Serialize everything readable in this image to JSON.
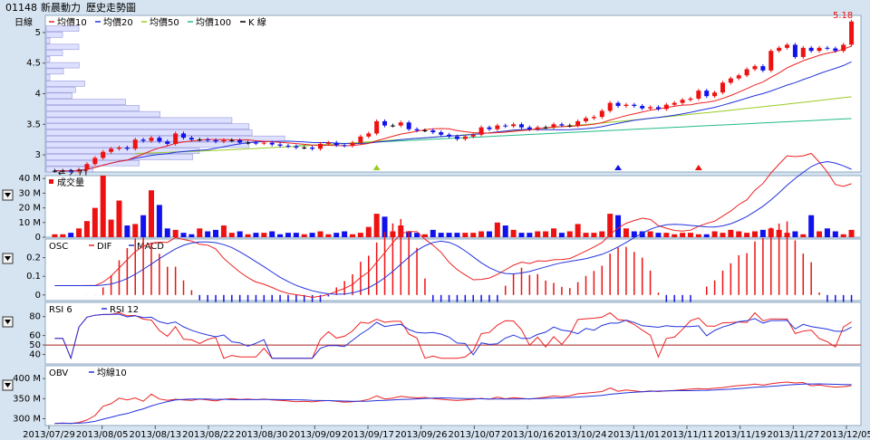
{
  "header": {
    "code": "01148",
    "name": "新晨動力",
    "subtitle": "歷史走勢圖"
  },
  "colors": {
    "up": "#ee1111",
    "down": "#1111ee",
    "ma10": "#ee2222",
    "ma20": "#2233dd",
    "ma50": "#99cc22",
    "ma100": "#22bb88",
    "panel_bg": "#ffffff",
    "bg": "#d6e3f0"
  },
  "dates": [
    "2013/07/29",
    "2013/08/05",
    "2013/08/13",
    "2013/08/22",
    "2013/08/30",
    "2013/09/09",
    "2013/09/17",
    "2013/09/26",
    "2013/10/07",
    "2013/10/16",
    "2013/10/24",
    "2013/11/01",
    "2013/11/11",
    "2013/11/19",
    "2013/11/27",
    "2013/12/05"
  ],
  "chart_data": [
    {
      "type": "candlestick",
      "panel": "price",
      "period_label": "日線",
      "legend": [
        {
          "name": "均價10",
          "color": "#ee2222"
        },
        {
          "name": "均價20",
          "color": "#2233dd"
        },
        {
          "name": "均價50",
          "color": "#99cc22"
        },
        {
          "name": "均價100",
          "color": "#22bb88"
        },
        {
          "name": "K 線",
          "color": "#000000"
        }
      ],
      "y_ticks": [
        "3",
        "3.5",
        "4",
        "4.5",
        "5"
      ],
      "ylim": [
        2.72,
        5.28
      ],
      "annotations": {
        "high": "5.18",
        "low": "2.71"
      },
      "closes": [
        2.74,
        2.74,
        2.73,
        2.76,
        2.85,
        2.95,
        3.05,
        3.1,
        3.12,
        3.1,
        3.25,
        3.23,
        3.28,
        3.22,
        3.18,
        3.35,
        3.28,
        3.25,
        3.25,
        3.24,
        3.22,
        3.24,
        3.24,
        3.2,
        3.2,
        3.19,
        3.2,
        3.17,
        3.15,
        3.14,
        3.12,
        3.12,
        3.1,
        3.18,
        3.2,
        3.16,
        3.15,
        3.2,
        3.3,
        3.35,
        3.55,
        3.48,
        3.48,
        3.53,
        3.42,
        3.4,
        3.4,
        3.37,
        3.33,
        3.3,
        3.26,
        3.3,
        3.33,
        3.45,
        3.42,
        3.48,
        3.47,
        3.5,
        3.45,
        3.42,
        3.45,
        3.45,
        3.5,
        3.48,
        3.48,
        3.55,
        3.6,
        3.62,
        3.72,
        3.85,
        3.8,
        3.82,
        3.8,
        3.76,
        3.78,
        3.75,
        3.82,
        3.85,
        3.9,
        3.92,
        4.05,
        3.96,
        4.02,
        4.18,
        4.25,
        4.3,
        4.4,
        4.45,
        4.38,
        4.7,
        4.75,
        4.8,
        4.6,
        4.75,
        4.7,
        4.75,
        4.74,
        4.7,
        4.8,
        5.18
      ]
    },
    {
      "type": "bar",
      "panel": "volume",
      "legend": [
        {
          "name": "成交量",
          "color": "#ee1111"
        }
      ],
      "y_ticks": [
        "0",
        "10 M",
        "20 M",
        "30 M",
        "40 M"
      ],
      "ylim": [
        0,
        42
      ],
      "values": [
        2,
        2,
        3,
        6,
        11,
        20,
        42,
        12,
        25,
        8,
        9,
        15,
        32,
        22,
        6,
        5,
        3,
        2,
        6,
        4,
        5,
        8,
        3,
        4,
        2,
        3,
        3,
        4,
        2,
        3,
        3,
        2,
        3,
        4,
        2,
        3,
        4,
        2,
        3,
        7,
        16,
        14,
        4,
        8,
        4,
        3,
        2,
        5,
        3,
        3,
        3,
        3,
        3,
        4,
        4,
        10,
        8,
        5,
        3,
        3,
        4,
        4,
        6,
        3,
        4,
        9,
        3,
        3,
        4,
        16,
        15,
        6,
        4,
        4,
        4,
        3,
        3,
        2,
        3,
        3,
        2,
        2,
        4,
        3,
        5,
        4,
        3,
        4,
        5,
        6,
        5,
        3,
        4,
        2,
        15,
        4,
        6,
        4,
        2,
        5
      ]
    },
    {
      "type": "line",
      "panel": "macd",
      "legend": [
        {
          "name": "OSC",
          "color": "#ee1111"
        },
        {
          "name": "DIF",
          "color": "#ee2222"
        },
        {
          "name": "MACD",
          "color": "#2233dd"
        }
      ],
      "y_ticks": [
        "0",
        "0.1",
        "0.2"
      ],
      "ylim": [
        -0.03,
        0.3
      ]
    },
    {
      "type": "line",
      "panel": "rsi",
      "legend": [
        {
          "name": "RSI 6",
          "color": "#ee2222"
        },
        {
          "name": "RSI 12",
          "color": "#2233dd"
        }
      ],
      "y_ticks": [
        "40",
        "50",
        "60",
        "80"
      ],
      "ylim": [
        30,
        95
      ],
      "reference_line": 50
    },
    {
      "type": "line",
      "panel": "obv",
      "legend": [
        {
          "name": "OBV",
          "color": "#ee2222"
        },
        {
          "name": "均線10",
          "color": "#2233dd"
        }
      ],
      "y_ticks": [
        "300 M",
        "350 M",
        "400 M"
      ],
      "ylim": [
        283,
        432
      ]
    }
  ]
}
